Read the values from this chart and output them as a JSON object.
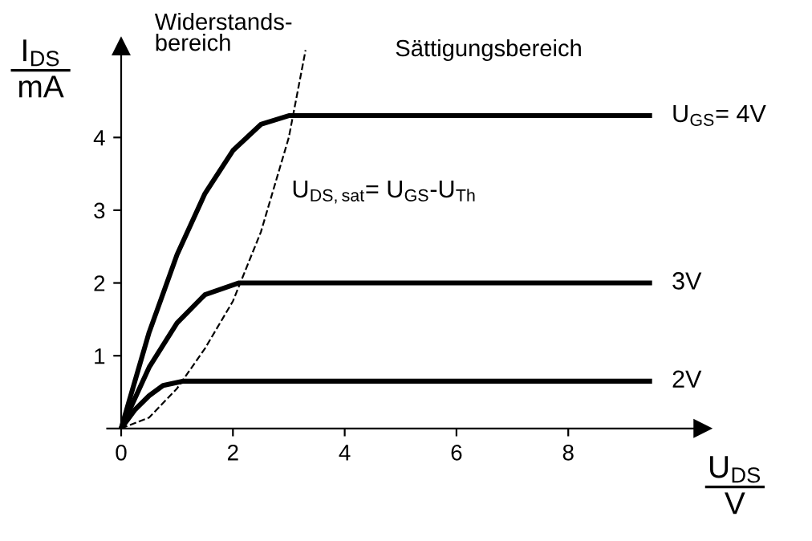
{
  "chart_data": {
    "type": "line",
    "xlabel": "U$_{DS}$\nV",
    "ylabel": "I$_{DS}$\nmA",
    "xlim": [
      -0.25,
      10.4
    ],
    "ylim": [
      0,
      5.25
    ],
    "xticks": [
      0,
      2,
      4,
      6,
      8
    ],
    "yticks": [
      1,
      2,
      3,
      4
    ],
    "grid": false,
    "legend": false,
    "marker": "none",
    "series": [
      {
        "name": "U$_{GS}$= 4V",
        "color": "#000000",
        "line_style": "solid",
        "x": [
          0,
          0.5,
          1,
          1.5,
          2,
          2.5,
          3,
          9.5
        ],
        "values": [
          0,
          1.32,
          2.39,
          3.23,
          3.82,
          4.18,
          4.3,
          4.3
        ]
      },
      {
        "name": "3V",
        "color": "#000000",
        "line_style": "solid",
        "x": [
          0,
          0.5,
          1,
          1.5,
          2.1,
          9.5
        ],
        "values": [
          0,
          0.84,
          1.45,
          1.84,
          2.0,
          2.0
        ]
      },
      {
        "name": "2V",
        "color": "#000000",
        "line_style": "solid",
        "x": [
          0,
          0.25,
          0.5,
          0.75,
          1.1,
          9.5
        ],
        "values": [
          0,
          0.26,
          0.45,
          0.59,
          0.65,
          0.65
        ]
      },
      {
        "name": "U$_{DS,sat}$= U$_{GS}$-U$_{Th}$",
        "color": "#000000",
        "line_style": "dashed",
        "x": [
          0,
          0.5,
          1,
          1.5,
          2,
          2.5,
          3,
          3.3
        ],
        "values": [
          0,
          0.15,
          0.55,
          1.1,
          1.75,
          2.7,
          4.0,
          5.2
        ]
      }
    ],
    "annotations": [
      "Widerstands-\nbereich",
      "Sättigungsbereich"
    ]
  }
}
